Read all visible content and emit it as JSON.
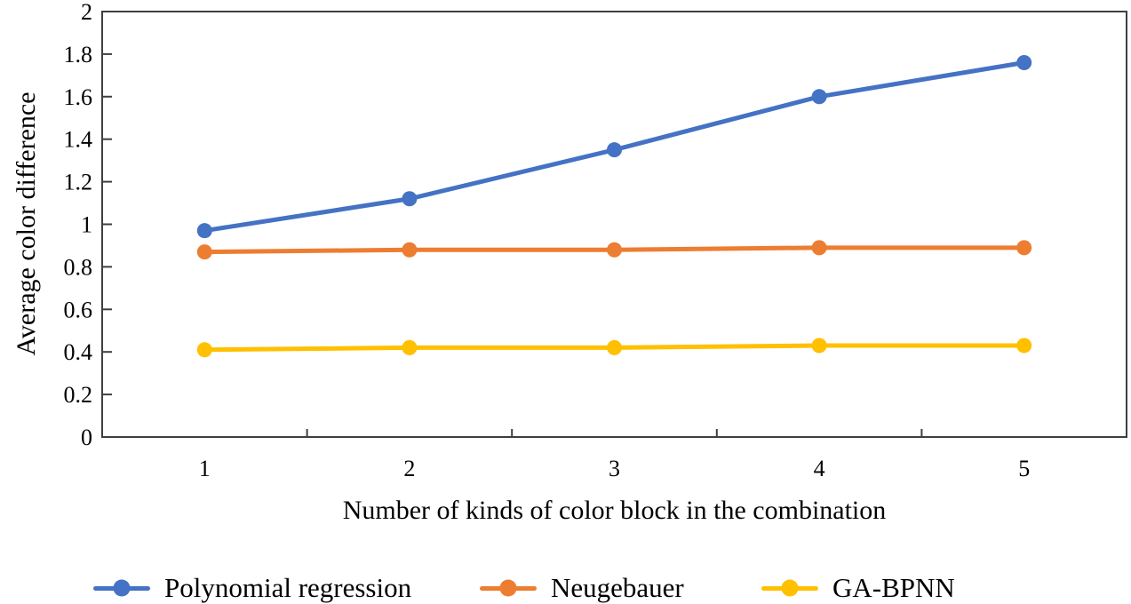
{
  "chart_data": {
    "type": "line",
    "title": "",
    "xlabel": "Number of kinds of color block in the combination",
    "ylabel": "Average color difference",
    "categories": [
      "1",
      "2",
      "3",
      "4",
      "5"
    ],
    "x_values": [
      1,
      2,
      3,
      4,
      5
    ],
    "ylim": [
      0,
      2
    ],
    "y_ticks": [
      0,
      0.2,
      0.4,
      0.6,
      0.8,
      1,
      1.2,
      1.4,
      1.6,
      1.8,
      2
    ],
    "y_tick_labels": [
      "0",
      "0.2",
      "0.4",
      "0.6",
      "0.8",
      "1",
      "1.2",
      "1.4",
      "1.6",
      "1.8",
      "2"
    ],
    "grid": "off",
    "legend_position": "bottom",
    "marker": "circle",
    "axis_color": "#3f3f3f",
    "text_color": "#000000",
    "series": [
      {
        "name": "Polynomial regression",
        "color": "#4472C4",
        "values": [
          0.97,
          1.12,
          1.35,
          1.6,
          1.76
        ]
      },
      {
        "name": "Neugebauer",
        "color": "#ED7D31",
        "values": [
          0.87,
          0.88,
          0.88,
          0.89,
          0.89
        ]
      },
      {
        "name": "GA-BPNN",
        "color": "#FFC000",
        "values": [
          0.41,
          0.42,
          0.42,
          0.43,
          0.43
        ]
      }
    ]
  }
}
